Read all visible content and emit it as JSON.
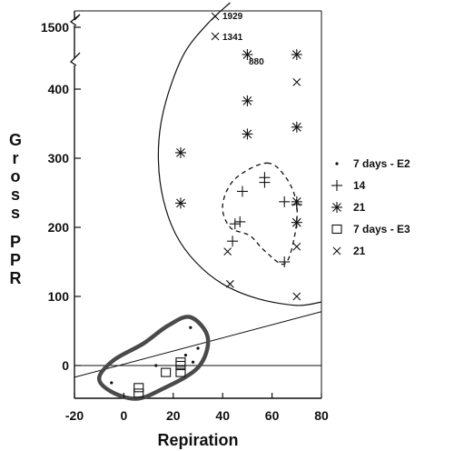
{
  "chart_data": {
    "type": "scatter",
    "xlabel": "Repiration",
    "ylabel": "Gross PPR",
    "xlim": [
      -20,
      80
    ],
    "xticks": [
      -20,
      0,
      20,
      40,
      60,
      80
    ],
    "yticks": [
      0,
      100,
      200,
      300,
      400
    ],
    "ytick_labels": [
      "0",
      "100",
      "200",
      "300",
      "400"
    ],
    "broken_axis": {
      "upper_label": "1500"
    },
    "series": [
      {
        "name": "7 days - E2",
        "marker": "dot",
        "points": [
          [
            -5,
            -25
          ],
          [
            13,
            0
          ],
          [
            25,
            15
          ],
          [
            27,
            55
          ],
          [
            28,
            5
          ],
          [
            30,
            25
          ]
        ]
      },
      {
        "name": "14",
        "marker": "plus",
        "points": [
          [
            45,
            205
          ],
          [
            47,
            208
          ],
          [
            48,
            252
          ],
          [
            44,
            180
          ],
          [
            57,
            265
          ],
          [
            57,
            272
          ],
          [
            65,
            237
          ],
          [
            65,
            150
          ],
          [
            70,
            233
          ]
        ]
      },
      {
        "name": "21",
        "marker": "asterisk",
        "points": [
          [
            23,
            308
          ],
          [
            23,
            235
          ],
          [
            50,
            383
          ],
          [
            50,
            335
          ],
          [
            50,
            450
          ],
          [
            70,
            450
          ],
          [
            70,
            345
          ],
          [
            70,
            237
          ],
          [
            70,
            207
          ]
        ]
      },
      {
        "name": "7 days - E3",
        "marker": "square",
        "points": [
          [
            6,
            -32
          ],
          [
            6,
            -40
          ],
          [
            17,
            -10
          ],
          [
            23,
            0
          ],
          [
            23,
            -10
          ],
          [
            23,
            5
          ]
        ]
      },
      {
        "name": "21",
        "marker": "cross",
        "points": [
          [
            42,
            165
          ],
          [
            43,
            118
          ],
          [
            70,
            410
          ],
          [
            70,
            172
          ],
          [
            70,
            100
          ],
          [
            37,
            515
          ],
          [
            37,
            485
          ]
        ]
      }
    ],
    "annotations": [
      "1929",
      "1341",
      "880"
    ],
    "reference_lines": [
      "y = 0",
      "linear trend from (-20, -17) to (80, 78)"
    ],
    "envelopes": [
      "solid outline around upper cluster",
      "dashed outline around 14-day cluster",
      "thick outline around 7-day cluster"
    ],
    "legend_position": "right"
  }
}
